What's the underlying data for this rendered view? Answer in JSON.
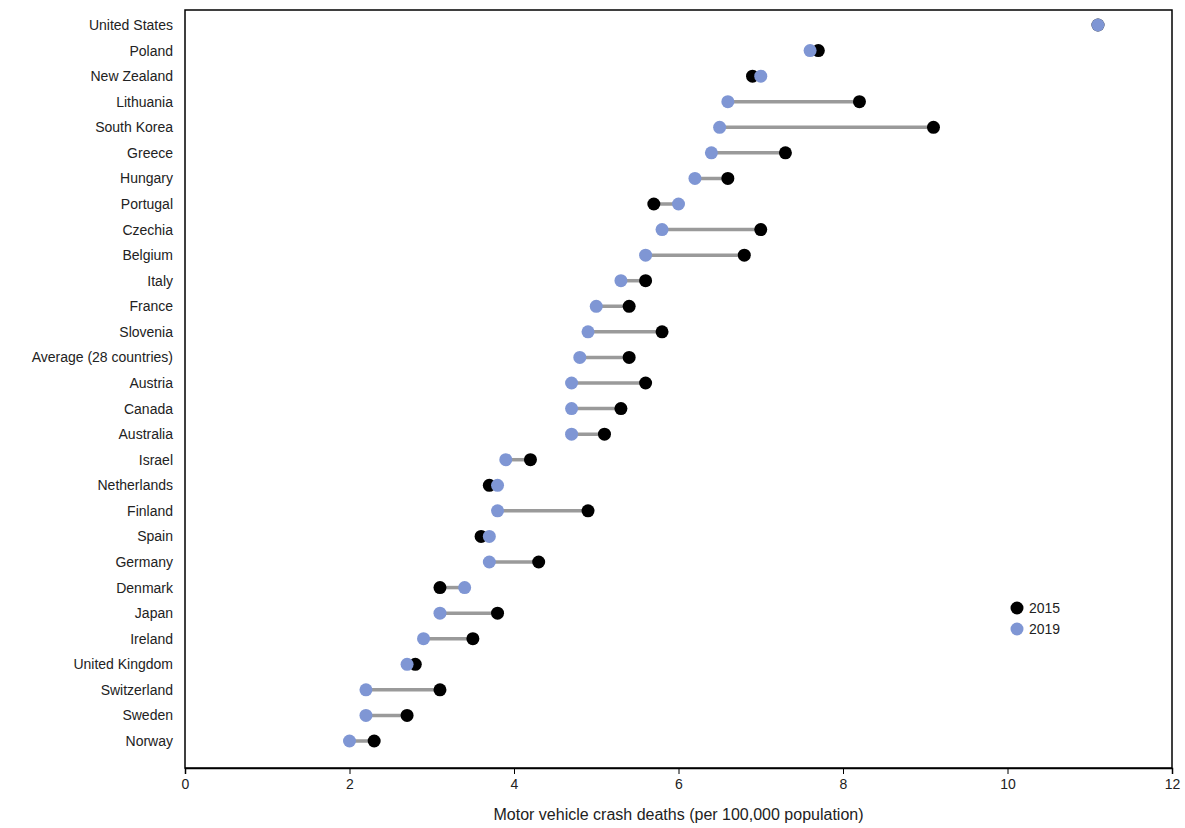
{
  "chart_data": {
    "type": "dumbbell",
    "orientation": "horizontal",
    "x_label": "Motor vehicle crash deaths (per 100,000 population)",
    "categories": [
      "United States",
      "Poland",
      "New Zealand",
      "Lithuania",
      "South Korea",
      "Greece",
      "Hungary",
      "Portugal",
      "Czechia",
      "Belgium",
      "Italy",
      "France",
      "Slovenia",
      "Average (28 countries)",
      "Austria",
      "Canada",
      "Australia",
      "Israel",
      "Netherlands",
      "Finland",
      "Spain",
      "Germany",
      "Denmark",
      "Japan",
      "Ireland",
      "United Kingdom",
      "Switzerland",
      "Sweden",
      "Norway"
    ],
    "series": [
      {
        "name": "2015",
        "color": "#000000",
        "marker": "circle",
        "values": [
          11.1,
          7.7,
          6.9,
          8.2,
          9.1,
          7.3,
          6.6,
          5.7,
          7.0,
          6.8,
          5.6,
          5.4,
          5.8,
          5.4,
          5.6,
          5.3,
          5.1,
          4.2,
          3.7,
          4.9,
          3.6,
          4.3,
          3.1,
          3.8,
          3.5,
          2.8,
          3.1,
          2.7,
          2.3
        ]
      },
      {
        "name": "2019",
        "color": "#7f96d4",
        "marker": "circle",
        "values": [
          11.1,
          7.6,
          7.0,
          6.6,
          6.5,
          6.4,
          6.2,
          6.0,
          5.8,
          5.6,
          5.3,
          5.0,
          4.9,
          4.8,
          4.7,
          4.7,
          4.7,
          3.9,
          3.8,
          3.8,
          3.7,
          3.7,
          3.4,
          3.1,
          2.9,
          2.7,
          2.2,
          2.2,
          2.0
        ]
      }
    ],
    "xlim": [
      0,
      12
    ],
    "xticks": [
      0,
      2,
      4,
      6,
      8,
      10,
      12
    ],
    "legend": "bottom-right",
    "grid": false
  }
}
